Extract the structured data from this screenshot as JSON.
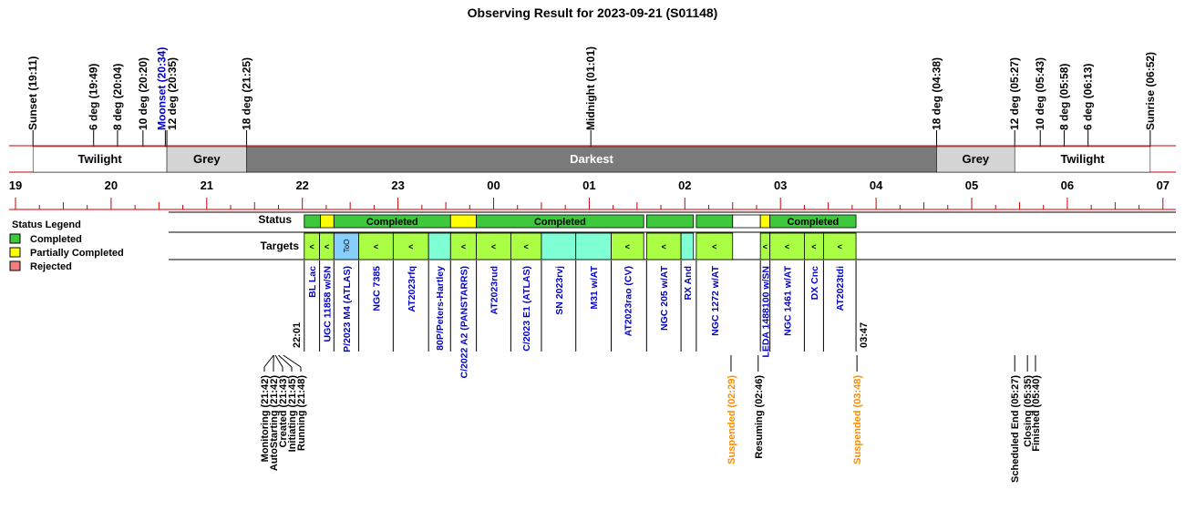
{
  "title": "Observing Result for 2023-09-21 (S01148)",
  "colors": {
    "twilight": "#ffffff",
    "grey": "#d4d4d4",
    "darkest": "#7a7a7a",
    "completed": "#3ec83e",
    "partial": "#ffff00",
    "rejected": "#f08080",
    "target_green": "#aaff44",
    "target_teal": "#7fffd4",
    "target_too": "#87cefa",
    "red_line": "#cc0000",
    "label_blue": "#0000cc",
    "label_orange": "#ff8c00"
  },
  "sky_events": [
    {
      "label": "Sunset (19:11)",
      "hour": 19.183,
      "color": "black"
    },
    {
      "label": "6 deg (19:49)",
      "hour": 19.817,
      "color": "black"
    },
    {
      "label": "8 deg (20:04)",
      "hour": 20.067,
      "color": "black"
    },
    {
      "label": "10 deg (20:20)",
      "hour": 20.333,
      "color": "black"
    },
    {
      "label": "Moonset (20:34)",
      "hour": 20.567,
      "color": "blue"
    },
    {
      "label": "12 deg (20:35)",
      "hour": 20.583,
      "color": "black"
    },
    {
      "label": "18 deg (21:25)",
      "hour": 21.417,
      "color": "black"
    },
    {
      "label": "Midnight (01:01)",
      "hour": 25.017,
      "color": "black"
    },
    {
      "label": "18 deg (04:38)",
      "hour": 28.633,
      "color": "black"
    },
    {
      "label": "12 deg (05:27)",
      "hour": 29.45,
      "color": "black"
    },
    {
      "label": "10 deg (05:43)",
      "hour": 29.717,
      "color": "black"
    },
    {
      "label": "8 deg (05:58)",
      "hour": 29.967,
      "color": "black"
    },
    {
      "label": "6 deg (06:13)",
      "hour": 30.217,
      "color": "black"
    },
    {
      "label": "Sunrise (06:52)",
      "hour": 30.867,
      "color": "black"
    }
  ],
  "sky_bands": [
    {
      "label": "Twilight",
      "start": 19.183,
      "end": 20.583,
      "kind": "twilight"
    },
    {
      "label": "Grey",
      "start": 20.583,
      "end": 21.417,
      "kind": "grey"
    },
    {
      "label": "Darkest",
      "start": 21.417,
      "end": 28.633,
      "kind": "darkest"
    },
    {
      "label": "Grey",
      "start": 28.633,
      "end": 29.45,
      "kind": "grey"
    },
    {
      "label": "Twilight",
      "start": 29.45,
      "end": 30.867,
      "kind": "twilight"
    }
  ],
  "hour_labels": [
    "19",
    "20",
    "21",
    "22",
    "23",
    "00",
    "01",
    "02",
    "03",
    "04",
    "05",
    "06",
    "07"
  ],
  "row_labels": {
    "status": "Status",
    "targets": "Targets"
  },
  "legend": {
    "title": "Status Legend",
    "items": [
      {
        "label": "Completed",
        "kind": "completed"
      },
      {
        "label": "Partially Completed",
        "kind": "partial"
      },
      {
        "label": "Rejected",
        "kind": "rejected"
      }
    ]
  },
  "status_blocks": [
    {
      "start": 22.02,
      "end": 22.19,
      "kind": "completed",
      "label": ""
    },
    {
      "start": 22.19,
      "end": 22.33,
      "kind": "partial",
      "label": ""
    },
    {
      "start": 22.33,
      "end": 23.55,
      "kind": "completed",
      "label": "Completed"
    },
    {
      "start": 23.55,
      "end": 23.82,
      "kind": "partial",
      "label": ""
    },
    {
      "start": 23.82,
      "end": 25.57,
      "kind": "completed",
      "label": "Completed"
    },
    {
      "start": 25.6,
      "end": 26.09,
      "kind": "completed",
      "label": ""
    },
    {
      "start": 26.12,
      "end": 26.5,
      "kind": "completed",
      "label": ""
    },
    {
      "start": 26.5,
      "end": 26.79,
      "kind": "empty",
      "label": ""
    },
    {
      "start": 26.79,
      "end": 26.89,
      "kind": "partial",
      "label": ""
    },
    {
      "start": 26.89,
      "end": 27.79,
      "kind": "completed",
      "label": "Completed"
    }
  ],
  "targets": [
    {
      "name": "BL Lac",
      "start": 22.02,
      "end": 22.18,
      "kind": "green",
      "mark": "<"
    },
    {
      "name": "UGC 11858 w/SN",
      "start": 22.18,
      "end": 22.33,
      "kind": "green",
      "mark": "<"
    },
    {
      "name": "P/2023 M4 (ATLAS)",
      "start": 22.33,
      "end": 22.59,
      "kind": "too",
      "mark": "ToO"
    },
    {
      "name": "NGC 7385",
      "start": 22.59,
      "end": 22.95,
      "kind": "green",
      "mark": "<"
    },
    {
      "name": "AT2023rfq",
      "start": 22.95,
      "end": 23.32,
      "kind": "green",
      "mark": "<"
    },
    {
      "name": "80P/Peters-Hartley",
      "start": 23.32,
      "end": 23.55,
      "kind": "teal",
      "mark": ""
    },
    {
      "name": "C/2022 A2 (PANSTARRS)",
      "start": 23.55,
      "end": 23.82,
      "kind": "green",
      "mark": "<"
    },
    {
      "name": "AT2023rud",
      "start": 23.82,
      "end": 24.18,
      "kind": "green",
      "mark": "<"
    },
    {
      "name": "C/2023 E1 (ATLAS)",
      "start": 24.18,
      "end": 24.5,
      "kind": "green",
      "mark": "<"
    },
    {
      "name": "SN 2023rvj",
      "start": 24.5,
      "end": 24.86,
      "kind": "teal",
      "mark": ""
    },
    {
      "name": "M31 w/AT",
      "start": 24.86,
      "end": 25.23,
      "kind": "teal",
      "mark": ""
    },
    {
      "name": "AT2023rao (CV)",
      "start": 25.23,
      "end": 25.57,
      "kind": "green",
      "mark": "<"
    },
    {
      "name": "NGC 205 w/AT",
      "start": 25.6,
      "end": 25.96,
      "kind": "green",
      "mark": "<"
    },
    {
      "name": "RX And",
      "start": 25.96,
      "end": 26.09,
      "kind": "teal",
      "mark": ""
    },
    {
      "name": "NGC 1272 w/AT",
      "start": 26.12,
      "end": 26.5,
      "kind": "green",
      "mark": "<"
    },
    {
      "name": "LEDA 1488100 w/SN",
      "start": 26.79,
      "end": 26.89,
      "kind": "green",
      "mark": "<"
    },
    {
      "name": "NGC 1461 w/AT",
      "start": 26.89,
      "end": 27.25,
      "kind": "green",
      "mark": "<"
    },
    {
      "name": "DX Cnc",
      "start": 27.25,
      "end": 27.45,
      "kind": "green",
      "mark": "<"
    },
    {
      "name": "AT2023tdi",
      "start": 27.45,
      "end": 27.79,
      "kind": "green",
      "mark": "<"
    }
  ],
  "time_marks": {
    "start": "22:01",
    "end": "03:47"
  },
  "bottom_events": [
    {
      "label": "Monitoring (21:42)",
      "hour": 21.7,
      "color": "black"
    },
    {
      "label": "AutoStarting (21:42)",
      "hour": 21.7,
      "color": "black"
    },
    {
      "label": "Created (21:43)",
      "hour": 21.717,
      "color": "black"
    },
    {
      "label": "Initiating (21:45)",
      "hour": 21.75,
      "color": "black"
    },
    {
      "label": "Running (21:48)",
      "hour": 21.8,
      "color": "black"
    },
    {
      "label": "Suspended (02:29)",
      "hour": 26.483,
      "color": "orange"
    },
    {
      "label": "Resuming (02:46)",
      "hour": 26.767,
      "color": "black"
    },
    {
      "label": "Suspended (03:48)",
      "hour": 27.8,
      "color": "orange"
    },
    {
      "label": "Scheduled End (05:27)",
      "hour": 29.45,
      "color": "black"
    },
    {
      "label": "Closing (05:35)",
      "hour": 29.583,
      "color": "black"
    },
    {
      "label": "Finished (05:40)",
      "hour": 29.667,
      "color": "black"
    }
  ]
}
